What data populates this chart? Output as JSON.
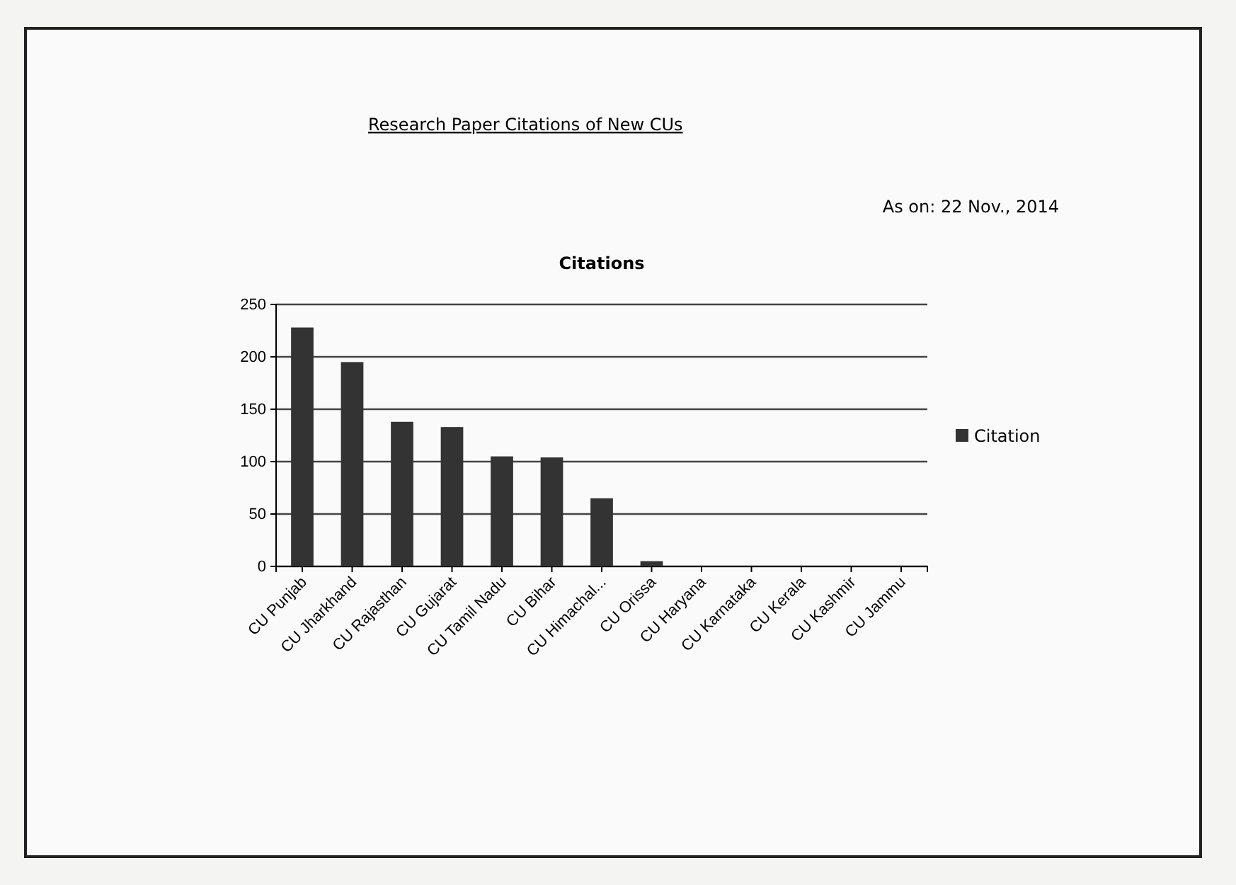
{
  "chart_data": {
    "type": "bar",
    "title": "Research Paper Citations of New CUs",
    "subtitle": "Citations",
    "annotations": [
      "As on: 22 Nov., 2014"
    ],
    "categories": [
      "CU Punjab",
      "CU Jharkhand",
      "CU Rajasthan",
      "CU Gujarat",
      "CU Tamil Nadu",
      "CU Bihar",
      "CU Himachal...",
      "CU Orissa",
      "CU Haryana",
      "CU Karnataka",
      "CU Kerala",
      "CU Kashmir",
      "CU Jammu"
    ],
    "series": [
      {
        "name": "Citation",
        "color": "#333333",
        "values": [
          228,
          195,
          138,
          133,
          105,
          104,
          65,
          5,
          0,
          0,
          0,
          0,
          0
        ]
      }
    ],
    "ylim": [
      0,
      250
    ],
    "yticks": [
      0,
      50,
      100,
      150,
      200,
      250
    ],
    "grid": "y",
    "legend": "right"
  }
}
